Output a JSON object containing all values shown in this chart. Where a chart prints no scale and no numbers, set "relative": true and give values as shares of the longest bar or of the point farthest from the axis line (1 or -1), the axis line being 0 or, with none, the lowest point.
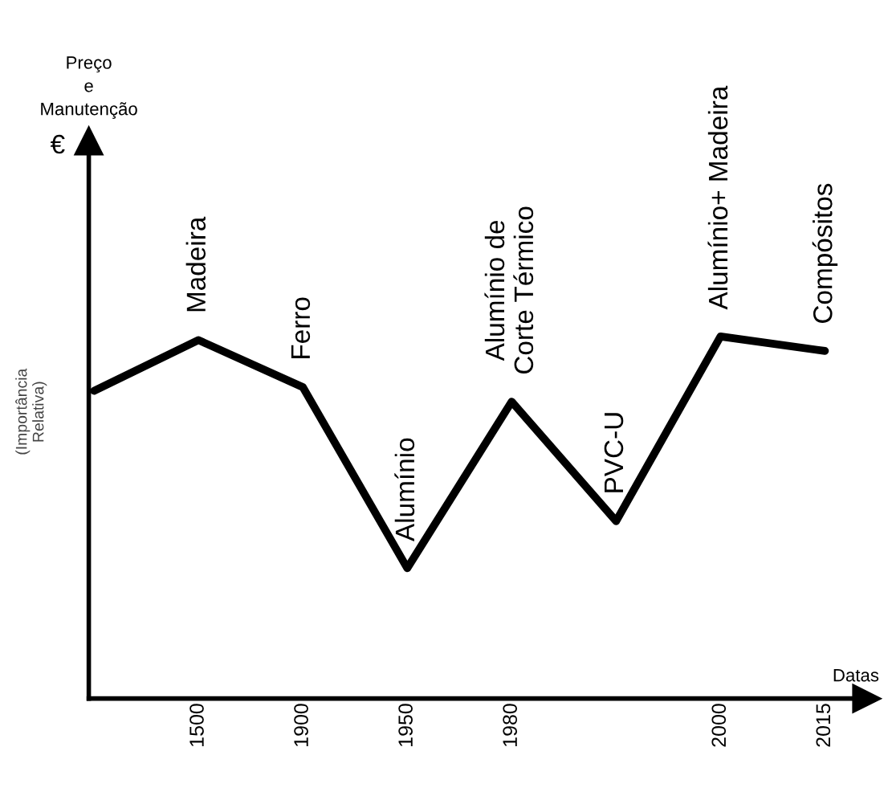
{
  "chart_data": {
    "type": "line",
    "relative": true,
    "title": "Preço\ne\nManutenção",
    "subtitle": "€",
    "ylabel": "(Importância\nRelativa)",
    "xlabel": "Datas",
    "categories": [
      null,
      "1500",
      "1900",
      "1950",
      "1980",
      null,
      "2000",
      "2015"
    ],
    "series": [
      {
        "color": "#000000",
        "values": [
          0.85,
          0.99,
          0.86,
          0.36,
          0.82,
          0.49,
          1.0,
          0.96
        ]
      }
    ],
    "annotations": [
      "Madeira",
      "Ferro",
      "Alumínio",
      "Alumínio de\nCorte Térmico",
      "PVC-U",
      "Alumínio+ Madeira",
      "Compósitos"
    ],
    "grid": false,
    "legend": false,
    "marker": "none",
    "line_style": "solid"
  }
}
